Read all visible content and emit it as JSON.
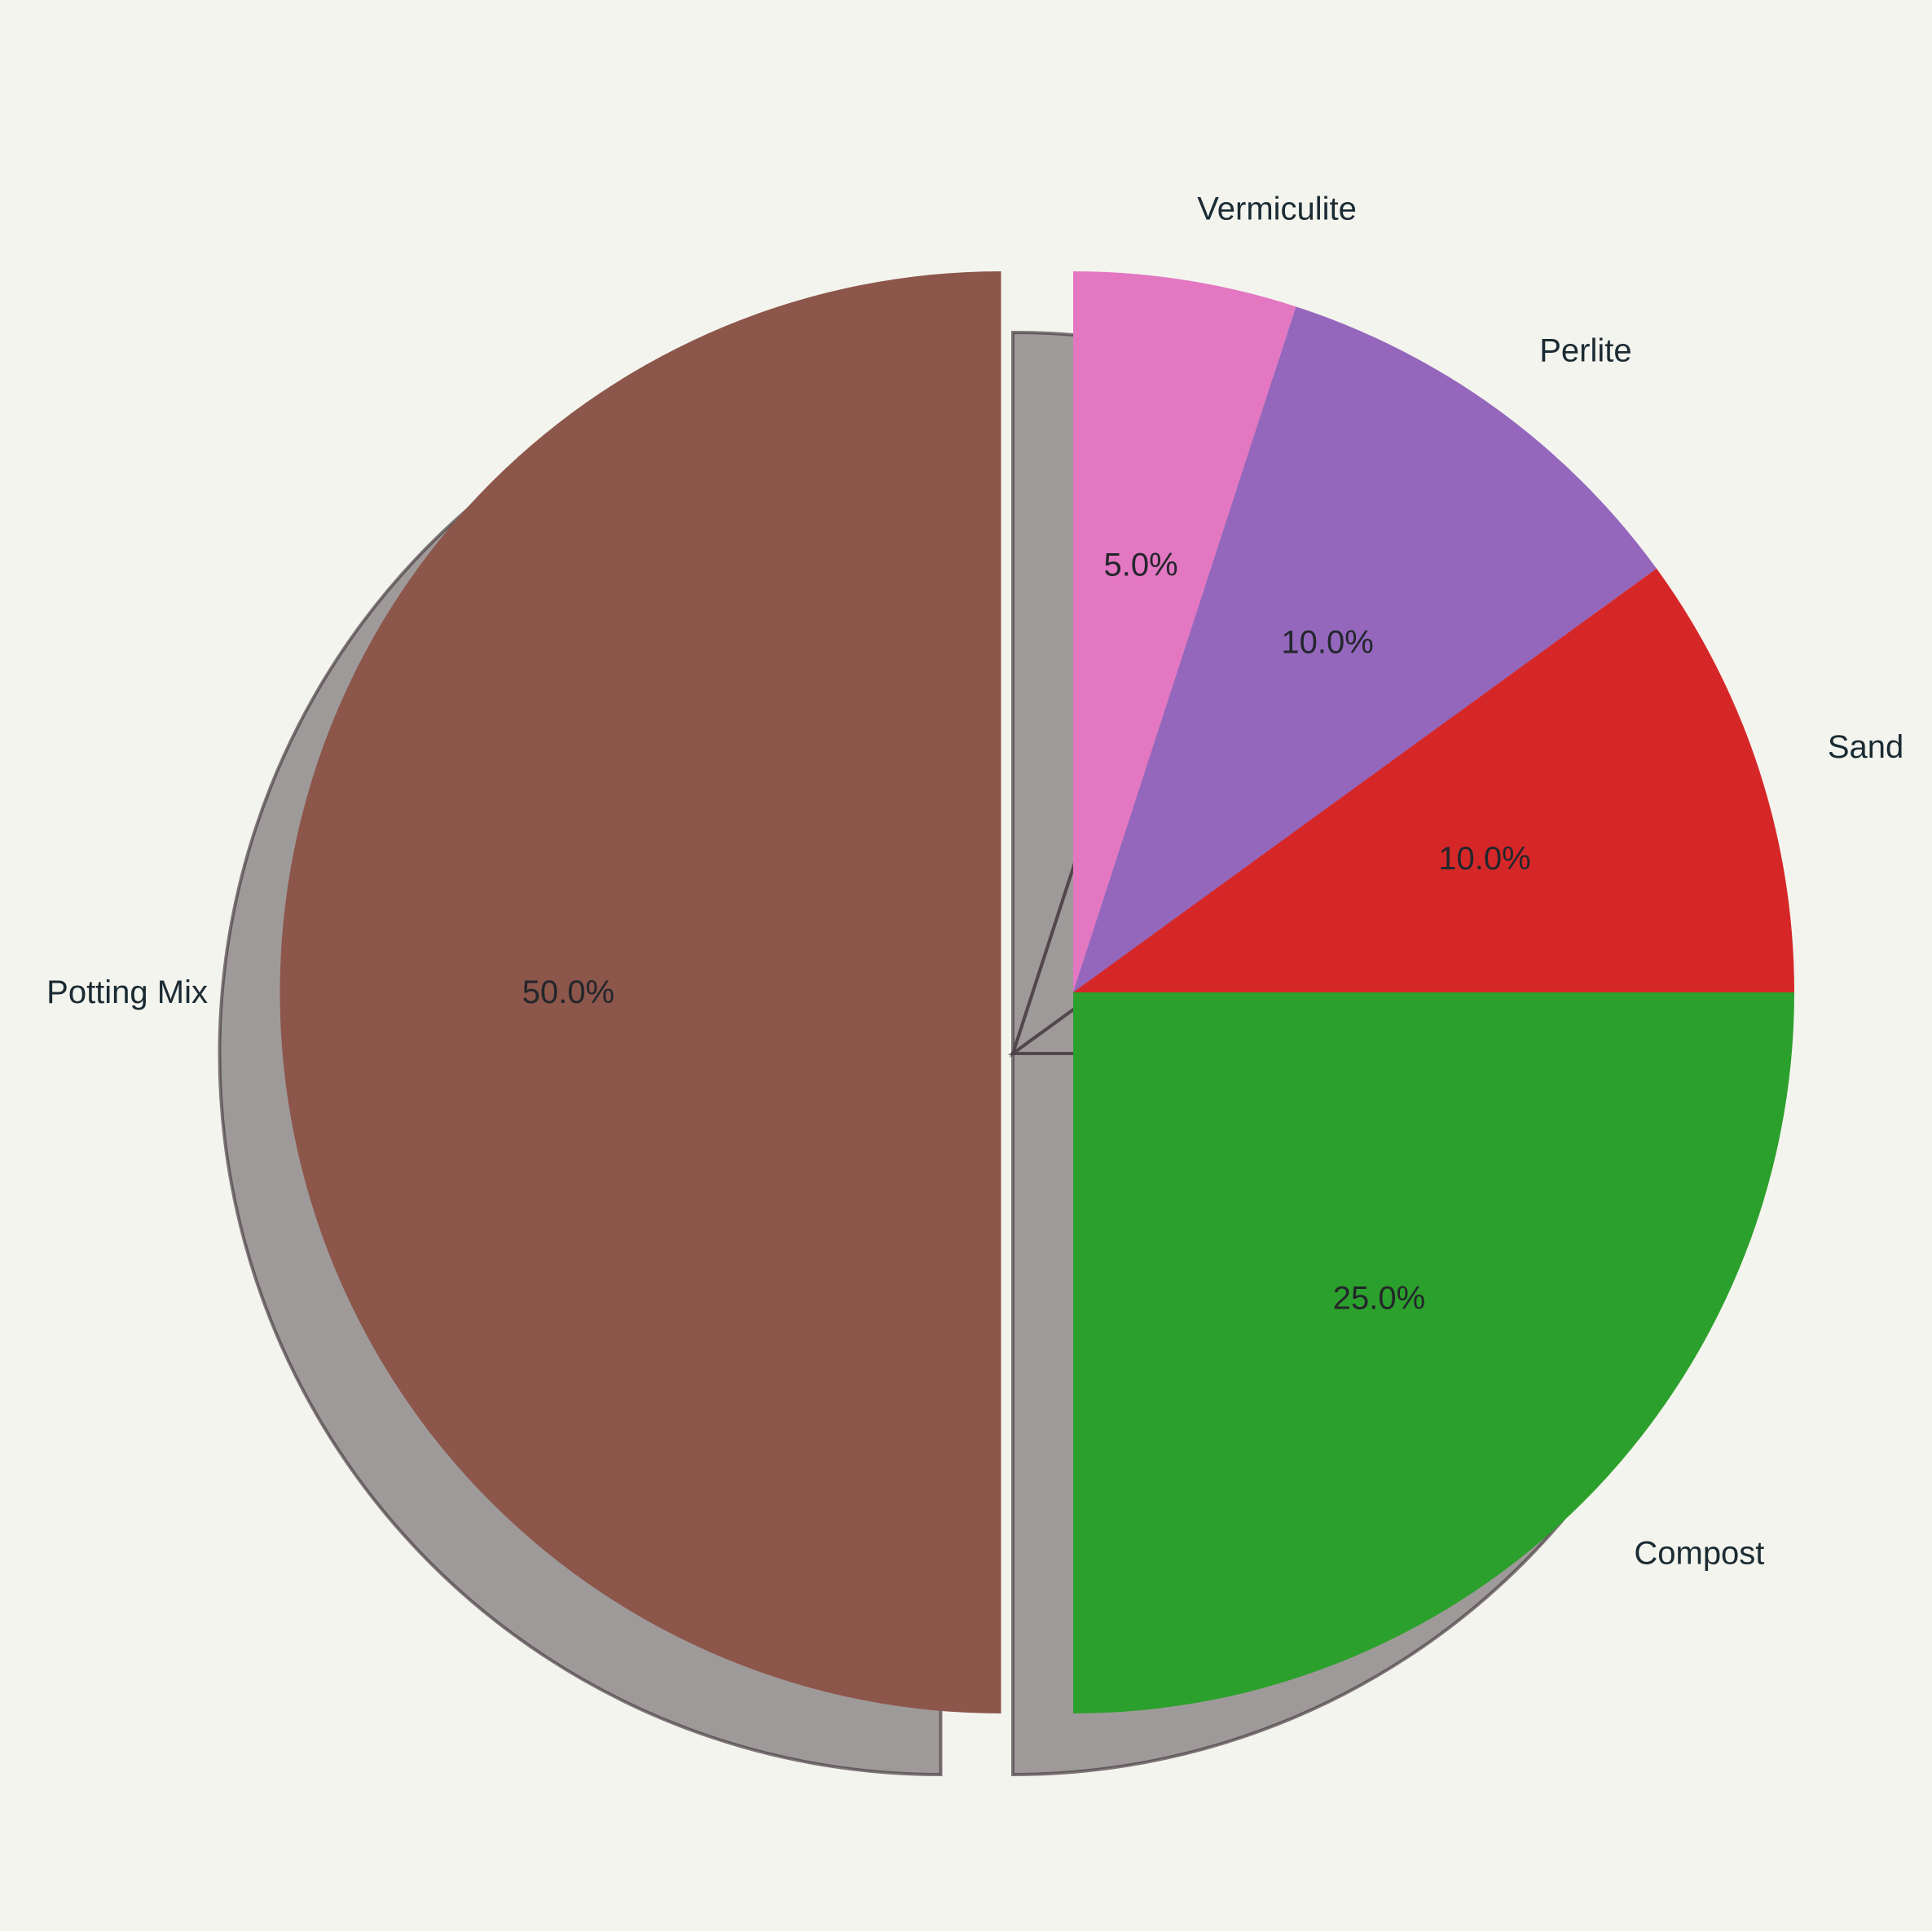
{
  "chart_data": {
    "type": "pie",
    "title": "",
    "start_angle_deg": 90,
    "direction": "clockwise",
    "shadow": true,
    "slices": [
      {
        "label": "Vermiculite",
        "value": 5,
        "pct_label": "5.0%",
        "color": "#e377c2",
        "explode": 0
      },
      {
        "label": "Perlite",
        "value": 10,
        "pct_label": "10.0%",
        "color": "#9467bd",
        "explode": 0
      },
      {
        "label": "Sand",
        "value": 10,
        "pct_label": "10.0%",
        "color": "#d62728",
        "explode": 0
      },
      {
        "label": "Compost",
        "value": 25,
        "pct_label": "25.0%",
        "color": "#2ca02c",
        "explode": 0
      },
      {
        "label": "Potting Mix",
        "value": 50,
        "pct_label": "50.0%",
        "color": "#8c564b",
        "explode": 0.1
      }
    ],
    "edge_color": "#5a4a54",
    "shadow_color": "#4a3f45",
    "background": "#f4f4ee",
    "legend": "none"
  }
}
